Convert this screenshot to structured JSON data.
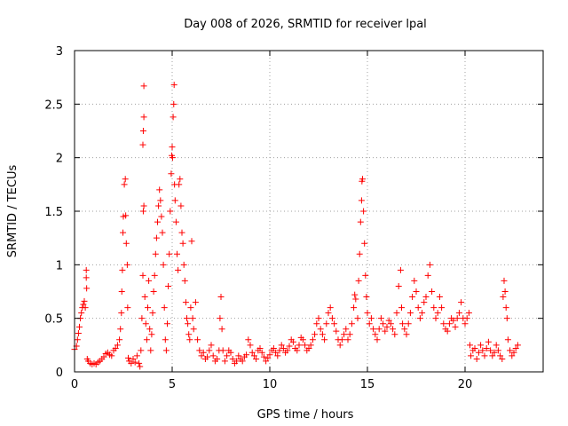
{
  "chart_data": {
    "type": "scatter",
    "title": "Day 008 of 2026, SRMTID for receiver lpal",
    "xlabel": "GPS time / hours",
    "ylabel": "SRMTID / TECUs",
    "xlim": [
      0,
      24
    ],
    "ylim": [
      0,
      3
    ],
    "x_ticks": [
      0,
      5,
      10,
      15,
      20
    ],
    "x_tick_labels": [
      "0",
      "5",
      "10",
      "15",
      "20"
    ],
    "y_ticks": [
      0,
      0.5,
      1,
      1.5,
      2,
      2.5,
      3
    ],
    "y_tick_labels": [
      "0",
      "0.5",
      "1",
      "1.5",
      "2",
      "2.5",
      "3"
    ],
    "grid": true,
    "marker": "+",
    "color": "#ff0000",
    "series": [
      {
        "name": "SRMTID",
        "points": [
          [
            0.0,
            0.21
          ],
          [
            0.1,
            0.24
          ],
          [
            0.15,
            0.3
          ],
          [
            0.2,
            0.36
          ],
          [
            0.25,
            0.42
          ],
          [
            0.3,
            0.5
          ],
          [
            0.35,
            0.55
          ],
          [
            0.4,
            0.6
          ],
          [
            0.45,
            0.63
          ],
          [
            0.5,
            0.66
          ],
          [
            0.55,
            0.6
          ],
          [
            0.6,
            0.88
          ],
          [
            0.6,
            0.95
          ],
          [
            0.62,
            0.78
          ],
          [
            0.65,
            0.12
          ],
          [
            0.7,
            0.1
          ],
          [
            0.8,
            0.08
          ],
          [
            0.9,
            0.07
          ],
          [
            1.0,
            0.08
          ],
          [
            1.1,
            0.07
          ],
          [
            1.2,
            0.09
          ],
          [
            1.3,
            0.1
          ],
          [
            1.4,
            0.12
          ],
          [
            1.5,
            0.14
          ],
          [
            1.6,
            0.17
          ],
          [
            1.7,
            0.18
          ],
          [
            1.8,
            0.16
          ],
          [
            1.9,
            0.15
          ],
          [
            2.0,
            0.2
          ],
          [
            2.1,
            0.22
          ],
          [
            2.2,
            0.25
          ],
          [
            2.3,
            0.3
          ],
          [
            2.35,
            0.4
          ],
          [
            2.4,
            0.55
          ],
          [
            2.42,
            0.75
          ],
          [
            2.45,
            0.95
          ],
          [
            2.48,
            1.3
          ],
          [
            2.5,
            1.45
          ],
          [
            2.55,
            1.75
          ],
          [
            2.6,
            1.8
          ],
          [
            2.62,
            1.46
          ],
          [
            2.65,
            1.2
          ],
          [
            2.7,
            1.0
          ],
          [
            2.72,
            0.6
          ],
          [
            2.75,
            0.13
          ],
          [
            2.8,
            0.1
          ],
          [
            2.9,
            0.08
          ],
          [
            3.0,
            0.12
          ],
          [
            3.1,
            0.09
          ],
          [
            3.2,
            0.15
          ],
          [
            3.3,
            0.08
          ],
          [
            3.35,
            0.05
          ],
          [
            3.4,
            0.2
          ],
          [
            3.45,
            0.5
          ],
          [
            3.5,
            0.9
          ],
          [
            3.52,
            1.5
          ],
          [
            3.55,
            1.55
          ],
          [
            3.5,
            2.12
          ],
          [
            3.52,
            2.25
          ],
          [
            3.55,
            2.38
          ],
          [
            3.55,
            2.67
          ],
          [
            3.6,
            0.7
          ],
          [
            3.65,
            0.45
          ],
          [
            3.7,
            0.3
          ],
          [
            3.75,
            0.6
          ],
          [
            3.8,
            0.85
          ],
          [
            3.85,
            0.4
          ],
          [
            3.9,
            0.2
          ],
          [
            3.95,
            0.35
          ],
          [
            4.0,
            0.55
          ],
          [
            4.05,
            0.75
          ],
          [
            4.1,
            0.9
          ],
          [
            4.15,
            1.1
          ],
          [
            4.2,
            1.25
          ],
          [
            4.25,
            1.4
          ],
          [
            4.3,
            1.55
          ],
          [
            4.35,
            1.7
          ],
          [
            4.4,
            1.6
          ],
          [
            4.45,
            1.45
          ],
          [
            4.5,
            1.3
          ],
          [
            4.55,
            1.0
          ],
          [
            4.6,
            0.6
          ],
          [
            4.65,
            0.3
          ],
          [
            4.7,
            0.2
          ],
          [
            4.75,
            0.45
          ],
          [
            4.8,
            0.8
          ],
          [
            4.85,
            1.1
          ],
          [
            4.9,
            1.5
          ],
          [
            4.95,
            1.85
          ],
          [
            4.98,
            2.02
          ],
          [
            5.0,
            2.1
          ],
          [
            5.02,
            2.0
          ],
          [
            5.05,
            2.38
          ],
          [
            5.08,
            2.5
          ],
          [
            5.1,
            2.68
          ],
          [
            5.12,
            1.75
          ],
          [
            5.15,
            1.6
          ],
          [
            5.2,
            1.4
          ],
          [
            5.25,
            1.1
          ],
          [
            5.3,
            0.95
          ],
          [
            5.35,
            1.75
          ],
          [
            5.4,
            1.8
          ],
          [
            5.45,
            1.55
          ],
          [
            5.5,
            1.3
          ],
          [
            5.55,
            1.2
          ],
          [
            5.6,
            1.0
          ],
          [
            5.65,
            0.85
          ],
          [
            5.7,
            0.65
          ],
          [
            5.75,
            0.5
          ],
          [
            5.8,
            0.45
          ],
          [
            5.85,
            0.35
          ],
          [
            5.9,
            0.3
          ],
          [
            5.95,
            0.6
          ],
          [
            6.0,
            1.22
          ],
          [
            6.05,
            0.5
          ],
          [
            6.1,
            0.4
          ],
          [
            6.2,
            0.65
          ],
          [
            6.3,
            0.3
          ],
          [
            6.4,
            0.2
          ],
          [
            6.5,
            0.15
          ],
          [
            6.6,
            0.18
          ],
          [
            6.7,
            0.12
          ],
          [
            6.8,
            0.14
          ],
          [
            6.9,
            0.2
          ],
          [
            7.0,
            0.25
          ],
          [
            7.1,
            0.15
          ],
          [
            7.2,
            0.1
          ],
          [
            7.3,
            0.12
          ],
          [
            7.4,
            0.2
          ],
          [
            7.45,
            0.5
          ],
          [
            7.5,
            0.7
          ],
          [
            7.55,
            0.4
          ],
          [
            7.6,
            0.2
          ],
          [
            7.7,
            0.1
          ],
          [
            7.8,
            0.15
          ],
          [
            7.9,
            0.2
          ],
          [
            8.0,
            0.18
          ],
          [
            8.1,
            0.12
          ],
          [
            8.2,
            0.08
          ],
          [
            8.3,
            0.1
          ],
          [
            8.4,
            0.15
          ],
          [
            8.5,
            0.12
          ],
          [
            8.6,
            0.1
          ],
          [
            8.7,
            0.14
          ],
          [
            8.8,
            0.16
          ],
          [
            8.9,
            0.3
          ],
          [
            9.0,
            0.25
          ],
          [
            9.1,
            0.18
          ],
          [
            9.2,
            0.15
          ],
          [
            9.3,
            0.12
          ],
          [
            9.4,
            0.2
          ],
          [
            9.5,
            0.22
          ],
          [
            9.6,
            0.18
          ],
          [
            9.7,
            0.14
          ],
          [
            9.8,
            0.1
          ],
          [
            9.9,
            0.13
          ],
          [
            10.0,
            0.16
          ],
          [
            10.1,
            0.2
          ],
          [
            10.2,
            0.22
          ],
          [
            10.3,
            0.18
          ],
          [
            10.4,
            0.15
          ],
          [
            10.5,
            0.2
          ],
          [
            10.6,
            0.25
          ],
          [
            10.7,
            0.22
          ],
          [
            10.8,
            0.18
          ],
          [
            10.9,
            0.2
          ],
          [
            11.0,
            0.24
          ],
          [
            11.1,
            0.3
          ],
          [
            11.2,
            0.28
          ],
          [
            11.3,
            0.22
          ],
          [
            11.4,
            0.2
          ],
          [
            11.5,
            0.25
          ],
          [
            11.6,
            0.32
          ],
          [
            11.7,
            0.3
          ],
          [
            11.8,
            0.25
          ],
          [
            11.9,
            0.2
          ],
          [
            12.0,
            0.22
          ],
          [
            12.1,
            0.25
          ],
          [
            12.2,
            0.3
          ],
          [
            12.3,
            0.35
          ],
          [
            12.4,
            0.45
          ],
          [
            12.5,
            0.5
          ],
          [
            12.6,
            0.4
          ],
          [
            12.7,
            0.35
          ],
          [
            12.8,
            0.3
          ],
          [
            12.9,
            0.45
          ],
          [
            13.0,
            0.55
          ],
          [
            13.1,
            0.6
          ],
          [
            13.2,
            0.5
          ],
          [
            13.3,
            0.45
          ],
          [
            13.4,
            0.38
          ],
          [
            13.5,
            0.3
          ],
          [
            13.6,
            0.25
          ],
          [
            13.7,
            0.3
          ],
          [
            13.8,
            0.35
          ],
          [
            13.9,
            0.4
          ],
          [
            14.0,
            0.3
          ],
          [
            14.1,
            0.35
          ],
          [
            14.2,
            0.45
          ],
          [
            14.3,
            0.6
          ],
          [
            14.35,
            0.72
          ],
          [
            14.4,
            0.68
          ],
          [
            14.5,
            0.5
          ],
          [
            14.55,
            0.85
          ],
          [
            14.6,
            1.1
          ],
          [
            14.65,
            1.4
          ],
          [
            14.7,
            1.6
          ],
          [
            14.72,
            1.78
          ],
          [
            14.75,
            1.8
          ],
          [
            14.8,
            1.5
          ],
          [
            14.85,
            1.2
          ],
          [
            14.9,
            0.9
          ],
          [
            14.95,
            0.7
          ],
          [
            15.0,
            0.55
          ],
          [
            15.1,
            0.45
          ],
          [
            15.2,
            0.5
          ],
          [
            15.3,
            0.4
          ],
          [
            15.4,
            0.35
          ],
          [
            15.5,
            0.3
          ],
          [
            15.6,
            0.4
          ],
          [
            15.7,
            0.5
          ],
          [
            15.8,
            0.45
          ],
          [
            15.9,
            0.38
          ],
          [
            16.0,
            0.42
          ],
          [
            16.1,
            0.48
          ],
          [
            16.2,
            0.45
          ],
          [
            16.3,
            0.4
          ],
          [
            16.4,
            0.35
          ],
          [
            16.5,
            0.55
          ],
          [
            16.6,
            0.8
          ],
          [
            16.7,
            0.95
          ],
          [
            16.75,
            0.6
          ],
          [
            16.8,
            0.45
          ],
          [
            16.9,
            0.4
          ],
          [
            17.0,
            0.35
          ],
          [
            17.1,
            0.45
          ],
          [
            17.2,
            0.55
          ],
          [
            17.3,
            0.7
          ],
          [
            17.4,
            0.85
          ],
          [
            17.5,
            0.75
          ],
          [
            17.6,
            0.6
          ],
          [
            17.7,
            0.5
          ],
          [
            17.8,
            0.55
          ],
          [
            17.9,
            0.65
          ],
          [
            18.0,
            0.7
          ],
          [
            18.1,
            0.9
          ],
          [
            18.2,
            1.0
          ],
          [
            18.3,
            0.75
          ],
          [
            18.4,
            0.6
          ],
          [
            18.5,
            0.5
          ],
          [
            18.6,
            0.55
          ],
          [
            18.7,
            0.7
          ],
          [
            18.8,
            0.6
          ],
          [
            18.9,
            0.45
          ],
          [
            19.0,
            0.4
          ],
          [
            19.1,
            0.38
          ],
          [
            19.2,
            0.45
          ],
          [
            19.3,
            0.5
          ],
          [
            19.4,
            0.48
          ],
          [
            19.5,
            0.42
          ],
          [
            19.6,
            0.5
          ],
          [
            19.7,
            0.55
          ],
          [
            19.8,
            0.65
          ],
          [
            19.9,
            0.5
          ],
          [
            20.0,
            0.45
          ],
          [
            20.1,
            0.5
          ],
          [
            20.2,
            0.55
          ],
          [
            20.25,
            0.25
          ],
          [
            20.3,
            0.15
          ],
          [
            20.4,
            0.2
          ],
          [
            20.5,
            0.22
          ],
          [
            20.6,
            0.12
          ],
          [
            20.7,
            0.18
          ],
          [
            20.8,
            0.25
          ],
          [
            20.9,
            0.2
          ],
          [
            21.0,
            0.15
          ],
          [
            21.1,
            0.22
          ],
          [
            21.2,
            0.28
          ],
          [
            21.3,
            0.2
          ],
          [
            21.4,
            0.15
          ],
          [
            21.5,
            0.18
          ],
          [
            21.6,
            0.25
          ],
          [
            21.7,
            0.2
          ],
          [
            21.8,
            0.15
          ],
          [
            21.9,
            0.12
          ],
          [
            21.95,
            0.7
          ],
          [
            22.0,
            0.85
          ],
          [
            22.05,
            0.75
          ],
          [
            22.1,
            0.6
          ],
          [
            22.15,
            0.5
          ],
          [
            22.2,
            0.3
          ],
          [
            22.3,
            0.2
          ],
          [
            22.4,
            0.15
          ],
          [
            22.5,
            0.18
          ],
          [
            22.6,
            0.22
          ],
          [
            22.7,
            0.25
          ]
        ]
      }
    ]
  }
}
